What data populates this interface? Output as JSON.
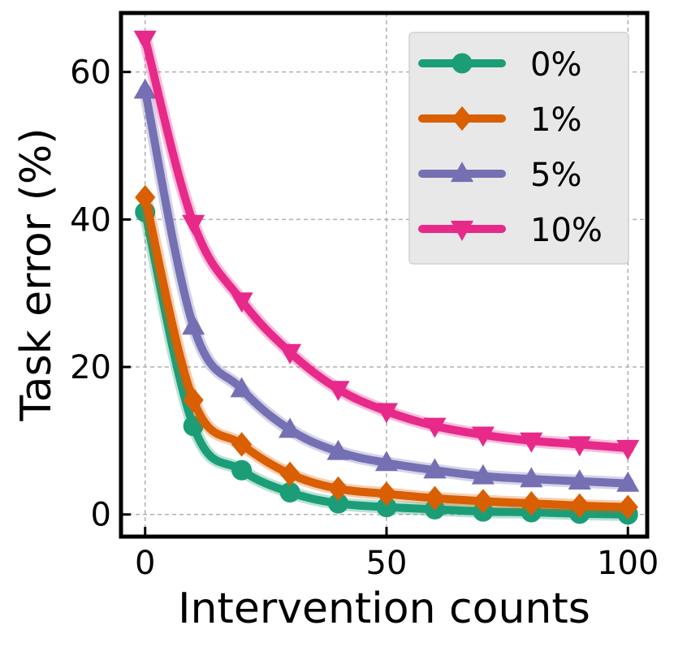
{
  "chart_data": {
    "type": "line",
    "title": "",
    "xlabel": "Intervention counts",
    "ylabel": "Task error (%)",
    "xlim": [
      -5,
      104
    ],
    "ylim": [
      -3,
      68
    ],
    "xticks": [
      0,
      50,
      100
    ],
    "yticks": [
      0,
      20,
      40,
      60
    ],
    "grid": true,
    "legend_position": "top-right",
    "x": [
      0,
      10,
      20,
      30,
      40,
      50,
      60,
      70,
      80,
      90,
      100
    ],
    "series": [
      {
        "name": "0%",
        "color": "#1b9e77",
        "marker": "circle",
        "values": [
          41,
          12,
          6,
          3,
          1.5,
          1,
          0.7,
          0.4,
          0.3,
          0.1,
          0
        ]
      },
      {
        "name": "1%",
        "color": "#d95f02",
        "marker": "diamond",
        "values": [
          43,
          15.5,
          9.5,
          5.5,
          3.5,
          2.8,
          2.2,
          1.8,
          1.5,
          1.2,
          1
        ]
      },
      {
        "name": "5%",
        "color": "#7570b3",
        "marker": "triangle-up",
        "values": [
          57.5,
          25.5,
          17,
          11.5,
          8.5,
          7,
          6,
          5.2,
          4.8,
          4.5,
          4.2
        ]
      },
      {
        "name": "10%",
        "color": "#e7298a",
        "marker": "triangle-down",
        "values": [
          64.5,
          39.5,
          29,
          22,
          17,
          14,
          12,
          10.8,
          10,
          9.5,
          9
        ]
      }
    ]
  }
}
